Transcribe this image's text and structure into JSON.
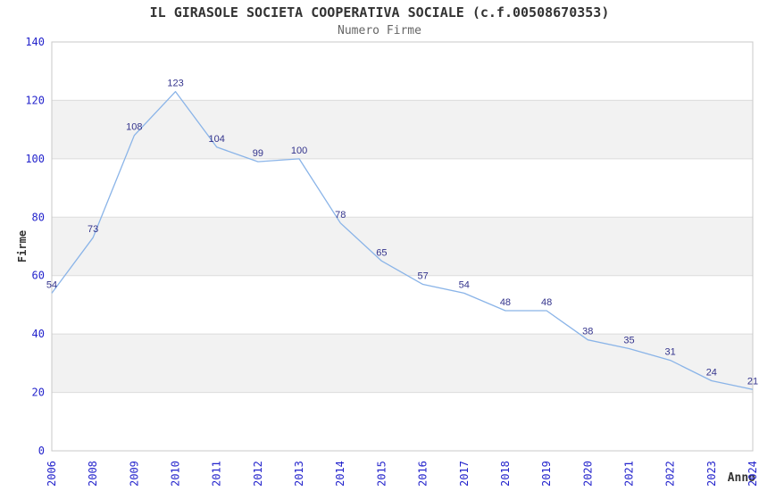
{
  "page": {
    "background": "#ffffff"
  },
  "chart_data": {
    "type": "line",
    "title": "IL GIRASOLE SOCIETA COOPERATIVA SOCIALE (c.f.00508670353)",
    "subtitle": "Numero Firme",
    "xlabel": "Anno",
    "ylabel": "Firme",
    "categories": [
      "2006",
      "2008",
      "2009",
      "2010",
      "2011",
      "2012",
      "2013",
      "2014",
      "2015",
      "2016",
      "2017",
      "2018",
      "2019",
      "2020",
      "2021",
      "2022",
      "2023",
      "2024"
    ],
    "values": [
      54,
      73,
      108,
      123,
      104,
      99,
      100,
      78,
      65,
      57,
      54,
      48,
      48,
      38,
      35,
      31,
      24,
      21
    ],
    "ylim": [
      0,
      140
    ],
    "ytick_step": 20,
    "yticks": [
      0,
      20,
      40,
      60,
      80,
      100,
      120,
      140
    ],
    "grid": "alternating-horizontal-bands",
    "legend_position": "none",
    "data_labels": true,
    "colors": {
      "line": "#8ab4e8",
      "tick_label": "#2424cc",
      "data_label": "#33338c",
      "band_fill": "#f2f2f2",
      "grid_line": "#dcdcdc",
      "plot_border": "#c8c8c8",
      "title": "#333333",
      "subtitle": "#666666",
      "axis_title": "#333333"
    }
  }
}
